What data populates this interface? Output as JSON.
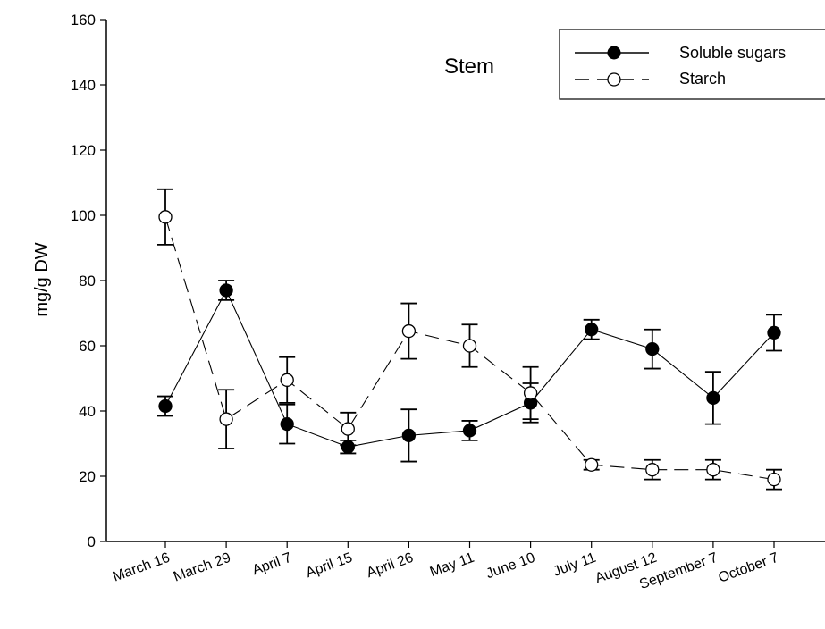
{
  "chart_data": {
    "type": "line",
    "title": "Stem",
    "xlabel": "",
    "ylabel": "mg/g DW",
    "ylim": [
      0,
      160
    ],
    "yticks": [
      0,
      20,
      40,
      60,
      80,
      100,
      120,
      140,
      160
    ],
    "categories": [
      "March 16",
      "March 29",
      "April 7",
      "April 15",
      "April 26",
      "May 11",
      "June 10",
      "July 11",
      "August 12",
      "September 7",
      "October 7"
    ],
    "grid": false,
    "legend_position": "top-right",
    "series": [
      {
        "name": "Soluble sugars",
        "line_style": "solid",
        "marker": "filled-circle",
        "color": "#000000",
        "values": [
          41.5,
          77,
          36,
          29,
          32.5,
          34,
          42.5,
          65,
          59,
          44,
          64
        ],
        "errors": [
          3,
          3,
          6,
          2,
          8,
          3,
          6,
          3,
          6,
          8,
          5.5
        ]
      },
      {
        "name": "Starch",
        "line_style": "dashed",
        "marker": "open-circle",
        "color": "#000000",
        "values": [
          99.5,
          37.5,
          49.5,
          34.5,
          64.5,
          60,
          45.5,
          23.5,
          22,
          22,
          19
        ],
        "errors": [
          8.5,
          9,
          7,
          5,
          8.5,
          6.5,
          8,
          1.5,
          3,
          3,
          3
        ]
      }
    ]
  }
}
